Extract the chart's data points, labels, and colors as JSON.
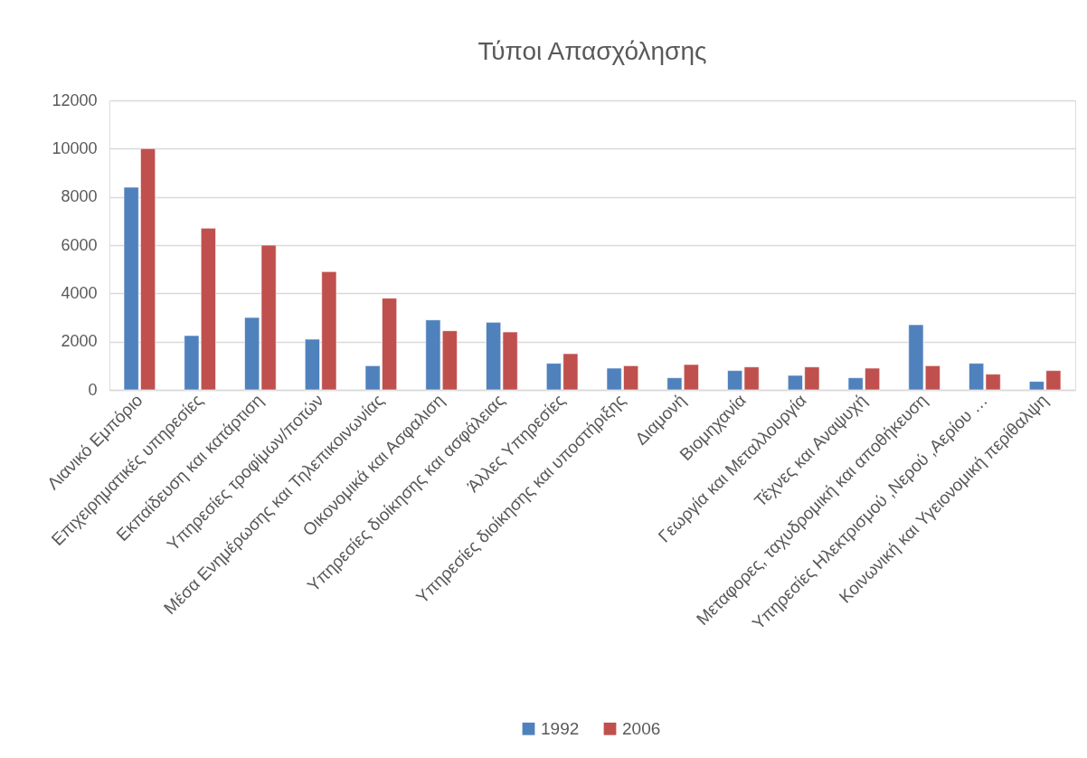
{
  "chart_data": {
    "type": "bar",
    "title": "Τύποι Απασχόλησης",
    "categories": [
      "Λιανικό Εμπόριο",
      "Επιχειρηματικές υπηρεσίες",
      "Εκπαίδευση και κατάρτιση",
      "Υπηρεσίες τροφίμων/ποτών",
      "Μέσα Ενημέρωσης και Τηλεπικοινωνίας",
      "Οικονομικά και Ασφαλιση",
      "Υπηρεσίες διοίκησης και ασφάλειας",
      "Άλλες Υπηρεσίες",
      "Υπηρεσίες διοίκησης και υποστήριξης",
      "Διαμονή",
      "Βιομηχανία",
      "Γεωργία και Μεταλλουργία",
      "Τέχνες και Αναψυχή",
      "Μεταφορες, ταχυδρομική και αποθήκευση",
      "Υπηρεσίες Ηλεκτρισμού ,Νερού ,Αερίου …",
      "Κοινωνική και Υγειονομική περίθαλψη"
    ],
    "series": [
      {
        "name": "1992",
        "color": "#4f81bd",
        "values": [
          8400,
          2250,
          3000,
          2100,
          1000,
          2900,
          2800,
          1100,
          900,
          500,
          800,
          600,
          500,
          2700,
          1100,
          350
        ]
      },
      {
        "name": "2006",
        "color": "#c0504d",
        "values": [
          10000,
          6700,
          6000,
          4900,
          3800,
          2450,
          2400,
          1500,
          1000,
          1050,
          950,
          950,
          900,
          1000,
          650,
          800
        ]
      }
    ],
    "ylim": [
      0,
      12000
    ],
    "yticks": [
      0,
      2000,
      4000,
      6000,
      8000,
      10000,
      12000
    ],
    "grid": "y",
    "legend": "bottom"
  }
}
